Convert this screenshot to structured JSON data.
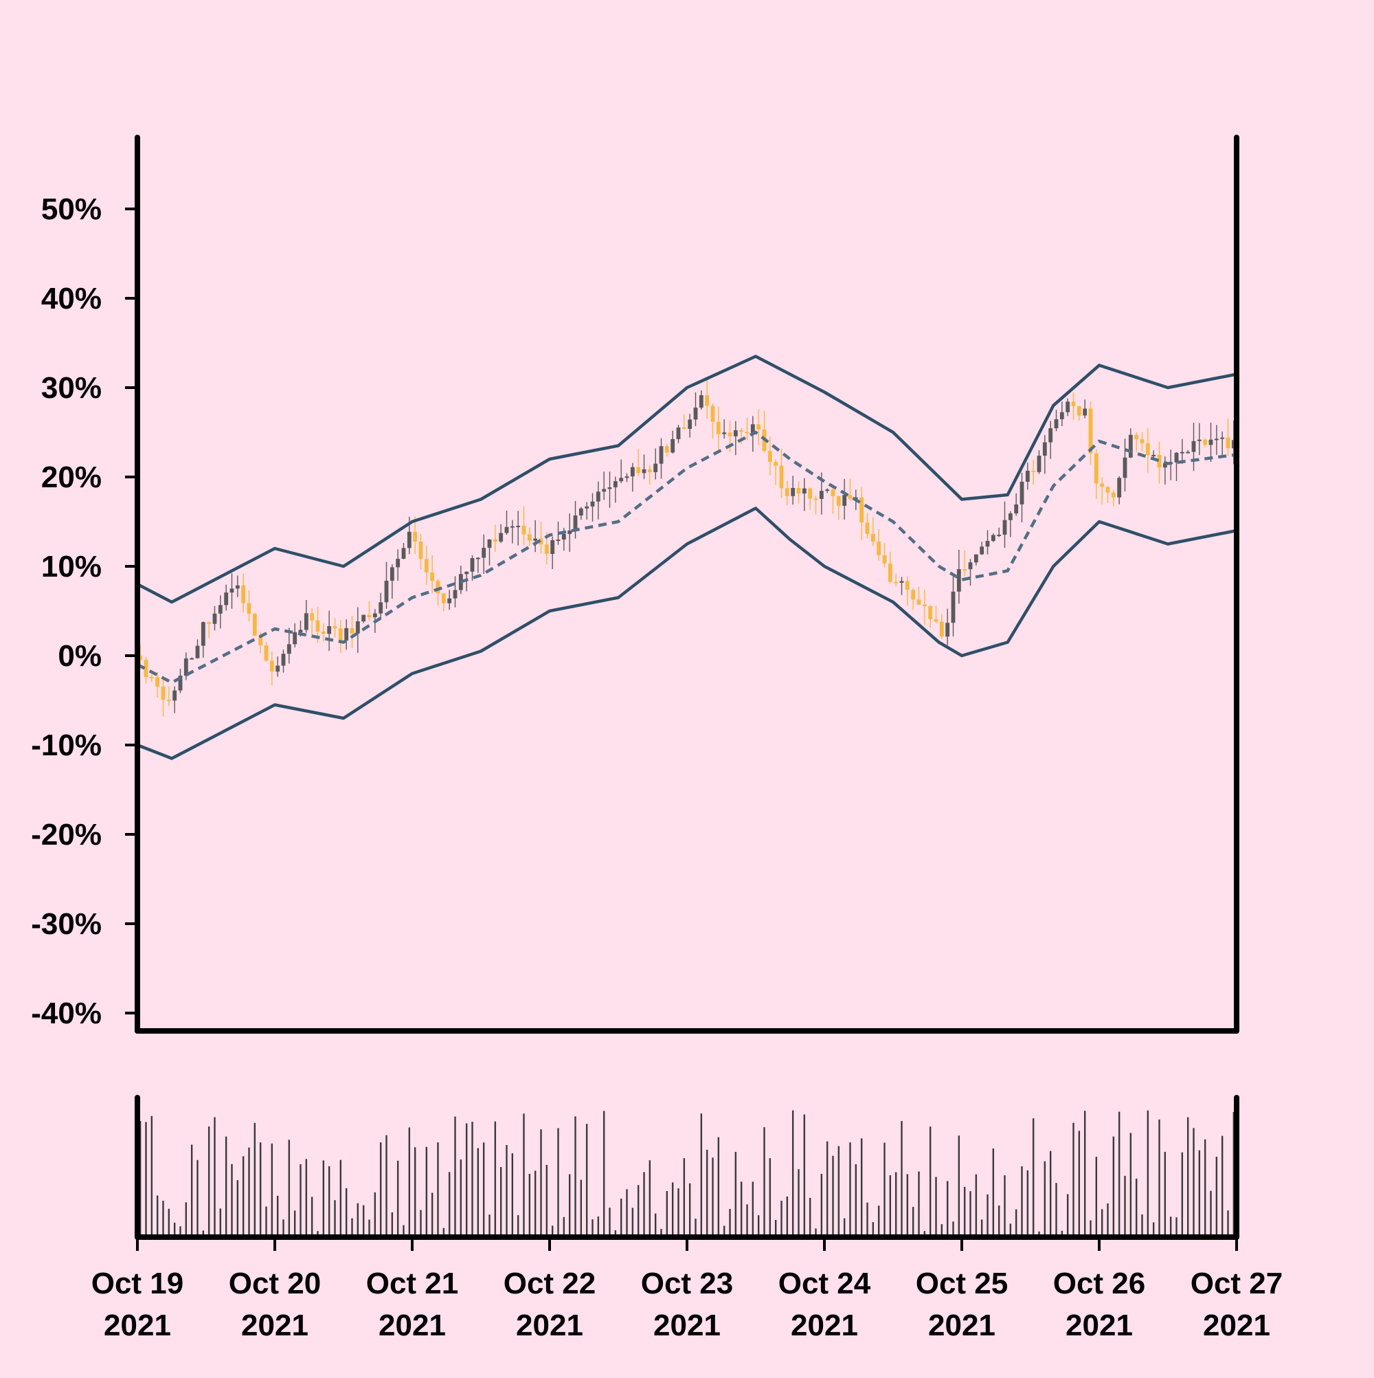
{
  "chart_data": {
    "type": "candlestick",
    "title": "",
    "xlabel": "",
    "ylabel": "",
    "y_unit": "%",
    "ylim": [
      -42,
      58
    ],
    "y_ticks": [
      50,
      40,
      30,
      20,
      10,
      0,
      -10,
      -20,
      -30,
      -40
    ],
    "y_tick_labels": [
      "50%",
      "40%",
      "30%",
      "20%",
      "10%",
      "0%",
      "-10%",
      "-20%",
      "-30%",
      "-40%"
    ],
    "x_ticks": [
      {
        "date": "2021-10-19",
        "line1": "Oct 19",
        "line2": "2021"
      },
      {
        "date": "2021-10-20",
        "line1": "Oct 20",
        "line2": "2021"
      },
      {
        "date": "2021-10-21",
        "line1": "Oct 21",
        "line2": "2021"
      },
      {
        "date": "2021-10-22",
        "line1": "Oct 22",
        "line2": "2021"
      },
      {
        "date": "2021-10-23",
        "line1": "Oct 23",
        "line2": "2021"
      },
      {
        "date": "2021-10-24",
        "line1": "Oct 24",
        "line2": "2021"
      },
      {
        "date": "2021-10-25",
        "line1": "Oct 25",
        "line2": "2021"
      },
      {
        "date": "2021-10-26",
        "line1": "Oct 26",
        "line2": "2021"
      },
      {
        "date": "2021-10-27",
        "line1": "Oct 27",
        "line2": "2021"
      }
    ],
    "xlim": [
      "2021-10-19",
      "2021-10-27"
    ],
    "candle_interval": "1h",
    "close_path": [
      {
        "t": "2021-10-19T00:00",
        "v": 0
      },
      {
        "t": "2021-10-19T06:00",
        "v": -5
      },
      {
        "t": "2021-10-19T12:00",
        "v": 3
      },
      {
        "t": "2021-10-19T18:00",
        "v": 8
      },
      {
        "t": "2021-10-20T00:00",
        "v": -2
      },
      {
        "t": "2021-10-20T06:00",
        "v": 4
      },
      {
        "t": "2021-10-20T12:00",
        "v": 2
      },
      {
        "t": "2021-10-20T18:00",
        "v": 5
      },
      {
        "t": "2021-10-21T00:00",
        "v": 14
      },
      {
        "t": "2021-10-21T06:00",
        "v": 6
      },
      {
        "t": "2021-10-21T12:00",
        "v": 11
      },
      {
        "t": "2021-10-21T18:00",
        "v": 15
      },
      {
        "t": "2021-10-22T00:00",
        "v": 12
      },
      {
        "t": "2021-10-22T06:00",
        "v": 16
      },
      {
        "t": "2021-10-22T12:00",
        "v": 20
      },
      {
        "t": "2021-10-22T18:00",
        "v": 21
      },
      {
        "t": "2021-10-23T00:00",
        "v": 26
      },
      {
        "t": "2021-10-23T03:00",
        "v": 29
      },
      {
        "t": "2021-10-23T06:00",
        "v": 24
      },
      {
        "t": "2021-10-23T12:00",
        "v": 26
      },
      {
        "t": "2021-10-23T18:00",
        "v": 18
      },
      {
        "t": "2021-10-24T00:00",
        "v": 18
      },
      {
        "t": "2021-10-24T06:00",
        "v": 17
      },
      {
        "t": "2021-10-24T12:00",
        "v": 9
      },
      {
        "t": "2021-10-24T18:00",
        "v": 5
      },
      {
        "t": "2021-10-24T21:00",
        "v": 2
      },
      {
        "t": "2021-10-25T00:00",
        "v": 9
      },
      {
        "t": "2021-10-25T06:00",
        "v": 13
      },
      {
        "t": "2021-10-25T12:00",
        "v": 20
      },
      {
        "t": "2021-10-25T18:00",
        "v": 28
      },
      {
        "t": "2021-10-25T22:00",
        "v": 27
      },
      {
        "t": "2021-10-26T00:00",
        "v": 19
      },
      {
        "t": "2021-10-26T03:00",
        "v": 18
      },
      {
        "t": "2021-10-26T06:00",
        "v": 24
      },
      {
        "t": "2021-10-26T12:00",
        "v": 21
      },
      {
        "t": "2021-10-26T18:00",
        "v": 24
      },
      {
        "t": "2021-10-27T00:00",
        "v": 24
      }
    ],
    "bands": {
      "upper": [
        {
          "t": "2021-10-19T00:00",
          "v": 8
        },
        {
          "t": "2021-10-19T06:00",
          "v": 6
        },
        {
          "t": "2021-10-19T18:00",
          "v": 10
        },
        {
          "t": "2021-10-20T00:00",
          "v": 12
        },
        {
          "t": "2021-10-20T12:00",
          "v": 10
        },
        {
          "t": "2021-10-21T00:00",
          "v": 15
        },
        {
          "t": "2021-10-21T12:00",
          "v": 17.5
        },
        {
          "t": "2021-10-22T00:00",
          "v": 22
        },
        {
          "t": "2021-10-22T12:00",
          "v": 23.5
        },
        {
          "t": "2021-10-23T00:00",
          "v": 30
        },
        {
          "t": "2021-10-23T12:00",
          "v": 33.5
        },
        {
          "t": "2021-10-23T18:00",
          "v": 31.5
        },
        {
          "t": "2021-10-24T00:00",
          "v": 29.5
        },
        {
          "t": "2021-10-24T12:00",
          "v": 25
        },
        {
          "t": "2021-10-24T20:00",
          "v": 20
        },
        {
          "t": "2021-10-25T00:00",
          "v": 17.5
        },
        {
          "t": "2021-10-25T08:00",
          "v": 18
        },
        {
          "t": "2021-10-25T16:00",
          "v": 28
        },
        {
          "t": "2021-10-26T00:00",
          "v": 32.5
        },
        {
          "t": "2021-10-26T12:00",
          "v": 30
        },
        {
          "t": "2021-10-27T00:00",
          "v": 31.5
        }
      ],
      "middle": [
        {
          "t": "2021-10-19T00:00",
          "v": -1
        },
        {
          "t": "2021-10-19T06:00",
          "v": -3
        },
        {
          "t": "2021-10-19T18:00",
          "v": 1
        },
        {
          "t": "2021-10-20T00:00",
          "v": 3
        },
        {
          "t": "2021-10-20T12:00",
          "v": 1.5
        },
        {
          "t": "2021-10-21T00:00",
          "v": 6.5
        },
        {
          "t": "2021-10-21T12:00",
          "v": 9
        },
        {
          "t": "2021-10-22T00:00",
          "v": 13.5
        },
        {
          "t": "2021-10-22T12:00",
          "v": 15
        },
        {
          "t": "2021-10-23T00:00",
          "v": 21
        },
        {
          "t": "2021-10-23T12:00",
          "v": 25
        },
        {
          "t": "2021-10-23T18:00",
          "v": 22
        },
        {
          "t": "2021-10-24T00:00",
          "v": 19.5
        },
        {
          "t": "2021-10-24T12:00",
          "v": 15
        },
        {
          "t": "2021-10-24T20:00",
          "v": 10
        },
        {
          "t": "2021-10-25T00:00",
          "v": 8.5
        },
        {
          "t": "2021-10-25T08:00",
          "v": 9.5
        },
        {
          "t": "2021-10-25T16:00",
          "v": 19
        },
        {
          "t": "2021-10-26T00:00",
          "v": 24
        },
        {
          "t": "2021-10-26T12:00",
          "v": 21.5
        },
        {
          "t": "2021-10-27T00:00",
          "v": 22.5
        }
      ],
      "lower": [
        {
          "t": "2021-10-19T00:00",
          "v": -10
        },
        {
          "t": "2021-10-19T06:00",
          "v": -11.5
        },
        {
          "t": "2021-10-19T18:00",
          "v": -7.5
        },
        {
          "t": "2021-10-20T00:00",
          "v": -5.5
        },
        {
          "t": "2021-10-20T12:00",
          "v": -7
        },
        {
          "t": "2021-10-21T00:00",
          "v": -2
        },
        {
          "t": "2021-10-21T12:00",
          "v": 0.5
        },
        {
          "t": "2021-10-22T00:00",
          "v": 5
        },
        {
          "t": "2021-10-22T12:00",
          "v": 6.5
        },
        {
          "t": "2021-10-23T00:00",
          "v": 12.5
        },
        {
          "t": "2021-10-23T12:00",
          "v": 16.5
        },
        {
          "t": "2021-10-23T18:00",
          "v": 13
        },
        {
          "t": "2021-10-24T00:00",
          "v": 10
        },
        {
          "t": "2021-10-24T12:00",
          "v": 6
        },
        {
          "t": "2021-10-24T20:00",
          "v": 1.5
        },
        {
          "t": "2021-10-25T00:00",
          "v": 0
        },
        {
          "t": "2021-10-25T08:00",
          "v": 1.5
        },
        {
          "t": "2021-10-25T16:00",
          "v": 10
        },
        {
          "t": "2021-10-26T00:00",
          "v": 15
        },
        {
          "t": "2021-10-26T12:00",
          "v": 12.5
        },
        {
          "t": "2021-10-27T00:00",
          "v": 14
        }
      ]
    },
    "volume_note": "relative volume bars, unlabeled",
    "colors": {
      "background": "#ffe0ed",
      "up_candle": "#5a5a5a",
      "down_candle": "#f5b942",
      "band_line": "#2f4f68",
      "middle_line": "#546e84",
      "axis": "#000000",
      "volume": "#3a3a3a"
    },
    "grid": false,
    "legend": "none"
  }
}
